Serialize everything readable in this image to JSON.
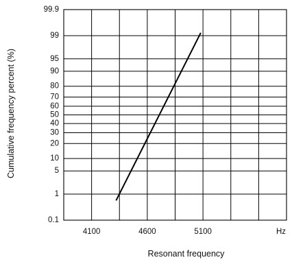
{
  "chart_data": {
    "type": "line",
    "title": "",
    "xlabel": "Resonant frequency",
    "ylabel": "Cumulative frequency percent (%)",
    "x_unit_label": "Hz",
    "x_ticks": [
      4100,
      4600,
      5100
    ],
    "x_tick_labels": [
      "4100",
      "4600",
      "5100"
    ],
    "x_gridlines": [
      3850,
      4100,
      4350,
      4600,
      4850,
      5100,
      5350,
      5600,
      5850
    ],
    "xlim": [
      3850,
      5850
    ],
    "y_scale": "normal-probability",
    "y_ticks": [
      0.1,
      1,
      5,
      10,
      20,
      30,
      40,
      50,
      60,
      70,
      80,
      90,
      95,
      99,
      99.9
    ],
    "y_tick_labels": [
      "0.1",
      "1",
      "5",
      "10",
      "20",
      "30",
      "40",
      "50",
      "60",
      "70",
      "80",
      "90",
      "95",
      "99",
      "99.9"
    ],
    "ylim": [
      0.1,
      99.9
    ],
    "grid": true,
    "series": [
      {
        "values": [
          {
            "x": 4320,
            "y": 0.6
          },
          {
            "x": 5080,
            "y": 99.2
          }
        ]
      }
    ]
  }
}
